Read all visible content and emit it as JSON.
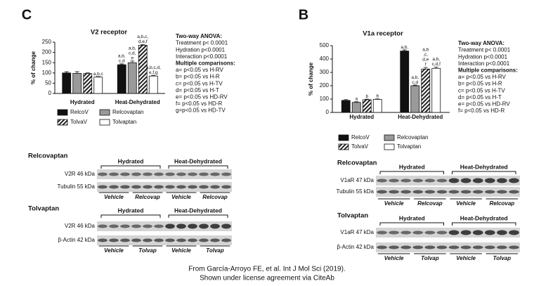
{
  "chart_data": [
    {
      "type": "bar",
      "panel": "C",
      "title": "V2 receptor",
      "ylabel": "% of change",
      "categories": [
        "Hydrated",
        "Heat-Dehydrated"
      ],
      "ylim": [
        0,
        250
      ],
      "yticks": [
        0,
        50,
        100,
        150,
        200,
        250
      ],
      "series": [
        {
          "name": "RelcoV",
          "color": "#111111",
          "values": [
            100,
            140
          ],
          "errors": [
            6,
            4
          ],
          "annotations": [
            null,
            [
              "a,b,",
              "c,d"
            ]
          ]
        },
        {
          "name": "Relcovaptan",
          "color": "#9a9a9a",
          "values": [
            98,
            150
          ],
          "errors": [
            8,
            8
          ],
          "annotations": [
            null,
            [
              "a,b,",
              "c,d,",
              "e"
            ]
          ]
        },
        {
          "name": "TolvaV",
          "color": "#222222",
          "hatch": true,
          "values": [
            97,
            235
          ],
          "errors": [
            3,
            3
          ],
          "annotations": [
            null,
            [
              "a,b,c,",
              "d,e,f"
            ]
          ]
        },
        {
          "name": "Tolvaptan",
          "color": "#ffffff",
          "values": [
            80,
            85
          ],
          "errors": [
            2,
            3
          ],
          "annotations": [
            [
              "a,b,c"
            ],
            [
              "a,b,c,d,",
              "e,f,g"
            ]
          ]
        }
      ],
      "stats": [
        "Two-way ANOVA:",
        "Treatment p< 0.0001",
        "Hydration p<0.0001",
        "Interaction p<0.0001",
        "Multiple comparisons:",
        "a= p<0.05 vs H-RV",
        "b= p<0.05 vs H-R",
        "c= p<0.05 vs H-TV",
        "d= p<0.05 vs H-T",
        "e= p<0.05 vs HD-RV",
        "f= p<0.05 vs HD-R",
        "g=p<0.05 vs HD-TV"
      ]
    },
    {
      "type": "bar",
      "panel": "B",
      "title": "V1a receptor",
      "ylabel": "% of change",
      "categories": [
        "Hydrated",
        "Heat-Dehydrated"
      ],
      "ylim": [
        0,
        500
      ],
      "yticks": [
        0,
        100,
        200,
        300,
        400,
        500
      ],
      "series": [
        {
          "name": "RelcoV",
          "color": "#111111",
          "values": [
            90,
            460
          ],
          "errors": [
            6,
            8
          ],
          "annotations": [
            null,
            [
              "a,b,"
            ]
          ]
        },
        {
          "name": "Relcovaptan",
          "color": "#9a9a9a",
          "values": [
            75,
            200
          ],
          "errors": [
            5,
            5
          ],
          "annotations": [
            [
              "a"
            ],
            [
              "a,b,",
              "c,d"
            ]
          ]
        },
        {
          "name": "TolvaV",
          "color": "#222222",
          "hatch": true,
          "values": [
            95,
            325
          ],
          "errors": [
            4,
            12
          ],
          "annotations": [
            [
              "b"
            ],
            [
              "a,b",
              ",c,",
              "d,e",
              "f"
            ]
          ]
        },
        {
          "name": "Tolvaptan",
          "color": "#ffffff",
          "values": [
            98,
            330
          ],
          "errors": [
            3,
            10
          ],
          "annotations": [
            [
              "b"
            ],
            [
              "a,b,",
              "c,d,f"
            ]
          ]
        }
      ],
      "stats": [
        "Two-way  ANOVA:",
        "Treatment p< 0.0001",
        "Hydration p<0.0001",
        "Interaction p<0.0001",
        "Multiple comparisons:",
        "a= p<0.05 vs H-RV",
        "b= p<0.05 vs H-R",
        "c= p<0.05 vs H-TV",
        "d= p<0.05 vs H-T",
        "e= p<0.05 vs HD-RV",
        "f= p<0.05 vs HD-R"
      ]
    }
  ],
  "blots": [
    {
      "title": "Relcovaptan",
      "groups": [
        "Hydrated",
        "Heat-Dehydrated"
      ],
      "rows": [
        "V2R 46 kDa",
        "Tubulin 55 kDa"
      ],
      "lanes": [
        "Vehicle",
        "Relcovap",
        "Vehicle",
        "Relcovap"
      ]
    },
    {
      "title": "Tolvaptan",
      "groups": [
        "Hydrated",
        "Heat-Dehydrated"
      ],
      "rows": [
        "V2R 46 kDa",
        "β-Actin 42 kDa"
      ],
      "lanes": [
        "Vehicle",
        "Tolvap",
        "Vehicle",
        "Tolvap"
      ]
    },
    {
      "title": "Relcovaptan",
      "groups": [
        "Hydrated",
        "Heat-Dehydrated"
      ],
      "rows": [
        "V1aR 47 kDa",
        "Tubulin 55 kDa"
      ],
      "lanes": [
        "Vehicle",
        "Relcovap",
        "Vehicle",
        "Relcovap"
      ]
    },
    {
      "title": "Tolvaptan",
      "groups": [
        "Hydrated",
        "Heat-Dehydrated"
      ],
      "rows": [
        "V1aR 47 kDa",
        "β-Actin 42 kDa"
      ],
      "lanes": [
        "Vehicle",
        "Tolvap",
        "Vehicle",
        "Tolvap"
      ]
    }
  ],
  "caption": [
    "From García-Arroyo FE, et al. Int J Mol Sci (2019).",
    "Shown under license agreement via CiteAb"
  ]
}
